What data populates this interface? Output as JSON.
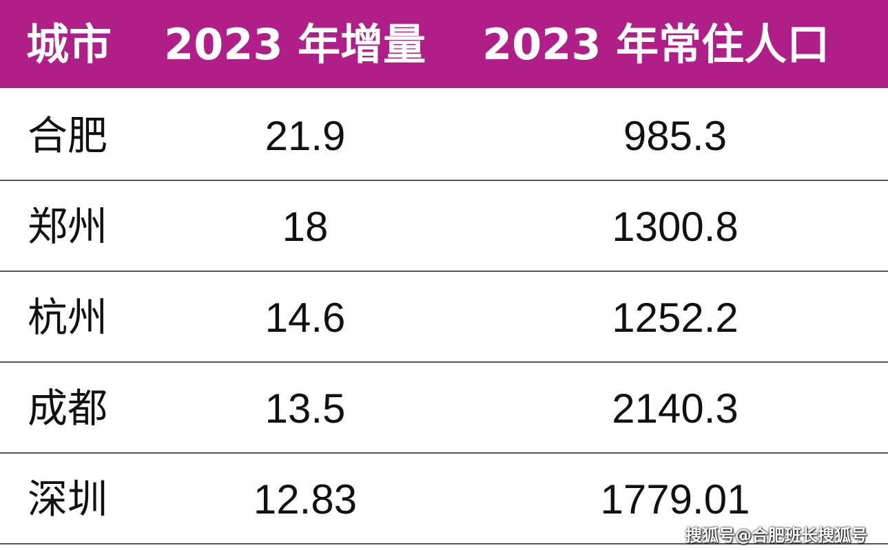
{
  "table": {
    "header": [
      "城市",
      "2023 年增量",
      "2023 年常住人口"
    ],
    "rows": [
      [
        "合肥",
        "21.9",
        "985.3"
      ],
      [
        "郑州",
        "18",
        "1300.8"
      ],
      [
        "杭州",
        "14.6",
        "1252.2"
      ],
      [
        "成都",
        "13.5",
        "2140.3"
      ],
      [
        "深圳",
        "12.83",
        "1779.01"
      ]
    ]
  },
  "watermark": "搜狐号@合肥班长搜狐号"
}
